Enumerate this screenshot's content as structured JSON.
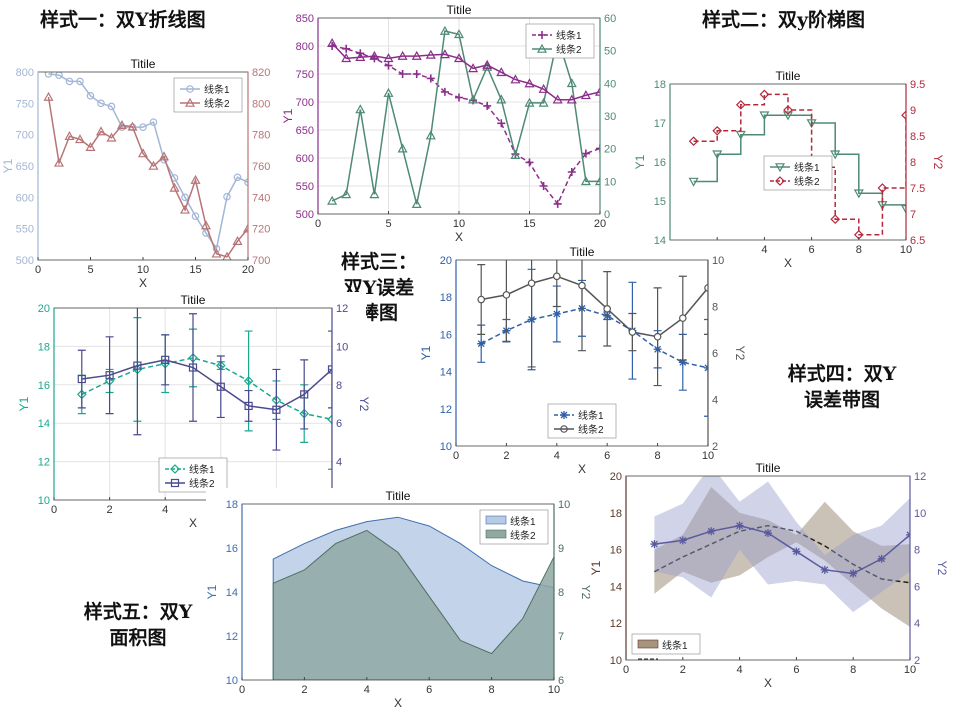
{
  "labels": {
    "style1": "样式一：双Y折线图",
    "style2": "样式二：双y阶梯图",
    "style3_line1": "样式三：",
    "style3_line2": "双Y误差",
    "style3_line3": "棒图",
    "style4_line1": "样式四：双Y",
    "style4_line2": "误差带图",
    "style5_line1": "样式五：双Y",
    "style5_line2": "面积图"
  },
  "chart_data": [
    {
      "id": "c1",
      "type": "line",
      "title": "Titile",
      "xlabel": "X",
      "ylabel": "Y1",
      "ylabel_right": "",
      "xlim": [
        0,
        20
      ],
      "ylim": [
        500,
        800
      ],
      "ylim_right": [
        700,
        820
      ],
      "xticks": [
        0,
        5,
        10,
        15,
        20
      ],
      "yticks": [
        500,
        550,
        600,
        650,
        700,
        750,
        800
      ],
      "yticks_right": [
        700,
        720,
        740,
        760,
        780,
        800,
        820
      ],
      "grid": false,
      "legend": "top-right",
      "colors": {
        "left": "#a2b6d6",
        "right": "#b87477"
      },
      "series": [
        {
          "name": "线条1",
          "axis": "left",
          "marker": "circle",
          "x": [
            1,
            2,
            3,
            4,
            5,
            6,
            7,
            8,
            9,
            10,
            11,
            12,
            13,
            14,
            15,
            16,
            17,
            18,
            19,
            20
          ],
          "y": [
            797,
            795,
            785,
            785,
            762,
            750,
            745,
            712,
            712,
            712,
            720,
            660,
            631,
            600,
            570,
            543,
            518,
            601,
            632,
            624
          ]
        },
        {
          "name": "线条2",
          "axis": "right",
          "marker": "triangle",
          "x": [
            1,
            2,
            3,
            4,
            5,
            6,
            7,
            8,
            9,
            10,
            11,
            12,
            13,
            14,
            15,
            16,
            17,
            18,
            19,
            20
          ],
          "y": [
            804,
            762,
            779,
            777,
            772,
            782,
            778,
            786,
            785,
            768,
            760,
            766,
            746,
            732,
            751,
            722,
            704,
            702,
            712,
            720
          ]
        }
      ]
    },
    {
      "id": "c2",
      "type": "line",
      "title": "Titile",
      "xlabel": "X",
      "ylabel": "Y1",
      "ylabel_right": "",
      "xlim": [
        0,
        20
      ],
      "ylim": [
        500,
        850
      ],
      "ylim_right": [
        0,
        60
      ],
      "xticks": [
        0,
        5,
        10,
        15,
        20
      ],
      "yticks": [
        500,
        550,
        600,
        650,
        700,
        750,
        800,
        850
      ],
      "yticks_right": [
        0,
        10,
        20,
        30,
        40,
        50,
        60
      ],
      "grid": true,
      "legend": "top-right",
      "colors": {
        "left": "#8b2e8b",
        "right": "#4e8a74"
      },
      "series": [
        {
          "name": "线条1",
          "axis": "left",
          "marker": "plus",
          "dash": true,
          "x": [
            1,
            2,
            3,
            4,
            5,
            6,
            7,
            8,
            9,
            10,
            11,
            12,
            13,
            14,
            15,
            16,
            17,
            18,
            19,
            20
          ],
          "y": [
            800,
            795,
            787,
            778,
            765,
            750,
            750,
            742,
            718,
            708,
            703,
            693,
            662,
            607,
            592,
            550,
            518,
            575,
            608,
            617
          ]
        },
        {
          "name": "线条2",
          "axis": "right",
          "marker": "triangle",
          "x": [
            1,
            2,
            3,
            4,
            5,
            6,
            7,
            8,
            9,
            10,
            11,
            12,
            13,
            14,
            15,
            16,
            17,
            18,
            19,
            20
          ],
          "y": [
            4,
            6,
            32,
            6,
            37,
            20,
            3,
            24,
            56,
            55,
            35,
            45,
            35,
            18,
            34,
            34,
            54,
            40,
            10,
            10
          ]
        },
        {
          "name": "",
          "axis": "left",
          "marker": "triangle-up",
          "x": [
            1,
            2,
            3,
            4,
            5,
            6,
            7,
            8,
            9,
            10,
            11,
            12,
            13,
            14,
            15,
            16,
            17,
            18,
            19,
            20
          ],
          "y": [
            805,
            778,
            780,
            782,
            778,
            782,
            782,
            784,
            785,
            778,
            760,
            766,
            753,
            740,
            733,
            723,
            704,
            704,
            712,
            718
          ]
        }
      ]
    },
    {
      "id": "c3",
      "type": "line",
      "title": "Titile",
      "xlabel": "X",
      "ylabel": "Y1",
      "ylabel_right": "Y2",
      "xlim": [
        0,
        10
      ],
      "ylim": [
        14,
        18
      ],
      "ylim_right": [
        6.5,
        9.5
      ],
      "xticks": [
        2,
        4,
        6,
        8,
        10
      ],
      "yticks": [
        14,
        15,
        16,
        17,
        18
      ],
      "yticks_right": [
        6.5,
        7,
        7.5,
        8,
        8.5,
        9,
        9.5
      ],
      "grid": false,
      "legend": "center",
      "colors": {
        "left": "#4e8a74",
        "right": "#b5283c"
      },
      "series": [
        {
          "name": "线条1",
          "axis": "left",
          "step": true,
          "marker": "triangle-down",
          "x": [
            1,
            2,
            3,
            4,
            5,
            6,
            7,
            8,
            9,
            10
          ],
          "y": [
            15.5,
            16.2,
            16.7,
            17.2,
            17.2,
            17.0,
            16.2,
            15.2,
            14.9,
            14.8
          ]
        },
        {
          "name": "线条2",
          "axis": "right",
          "step": true,
          "dash": true,
          "marker": "diamond",
          "x": [
            1,
            2,
            3,
            4,
            5,
            6,
            7,
            8,
            9,
            10
          ],
          "y": [
            8.4,
            8.6,
            9.1,
            9.3,
            9.0,
            7.9,
            6.9,
            6.6,
            7.5,
            8.9
          ]
        }
      ]
    },
    {
      "id": "c4",
      "type": "line",
      "title": "Titile",
      "xlabel": "X",
      "ylabel": "Y1",
      "ylabel_right": "Y2",
      "xlim": [
        0,
        10
      ],
      "ylim": [
        10,
        20
      ],
      "ylim_right": [
        2,
        12
      ],
      "xticks": [
        0,
        2,
        4,
        6,
        8,
        10
      ],
      "yticks": [
        10,
        12,
        14,
        16,
        18,
        20
      ],
      "yticks_right": [
        4,
        6,
        8,
        10,
        12
      ],
      "grid": true,
      "legend": "bottom-center",
      "colors": {
        "left": "#1aa88f",
        "right": "#4a4a8e"
      },
      "series": [
        {
          "name": "线条1",
          "axis": "left",
          "dash": true,
          "marker": "diamond",
          "x": [
            1,
            2,
            3,
            4,
            5,
            6,
            7,
            8,
            9,
            10
          ],
          "y": [
            15.5,
            16.2,
            16.8,
            17.1,
            17.4,
            17.0,
            16.2,
            15.2,
            14.5,
            14.2
          ],
          "err": [
            1.0,
            0.6,
            2.7,
            1.5,
            1.5,
            0.2,
            2.6,
            1.0,
            1.5,
            2.6
          ]
        },
        {
          "name": "线条2",
          "axis": "right",
          "marker": "square",
          "x": [
            1,
            2,
            3,
            4,
            5,
            6,
            7,
            8,
            9,
            10
          ],
          "y": [
            8.3,
            8.5,
            9.0,
            9.3,
            8.9,
            7.9,
            6.9,
            6.7,
            7.5,
            8.8
          ],
          "err": [
            1.5,
            2.0,
            3.6,
            1.3,
            2.8,
            1.6,
            0.8,
            2.1,
            1.8,
            2.0
          ]
        }
      ]
    },
    {
      "id": "c5",
      "type": "line",
      "title": "Titile",
      "xlabel": "X",
      "ylabel": "Y1",
      "ylabel_right": "Y2",
      "xlim": [
        0,
        10
      ],
      "ylim": [
        10,
        20
      ],
      "ylim_right": [
        2,
        10
      ],
      "xticks": [
        0,
        2,
        4,
        6,
        8,
        10
      ],
      "yticks": [
        10,
        12,
        14,
        16,
        18,
        20
      ],
      "yticks_right": [
        2,
        4,
        6,
        8,
        10
      ],
      "grid": false,
      "legend": "bottom-center",
      "colors": {
        "left": "#2f60a8",
        "right": "#555555"
      },
      "series": [
        {
          "name": "线条1",
          "axis": "left",
          "dash": true,
          "marker": "star",
          "x": [
            1,
            2,
            3,
            4,
            5,
            6,
            7,
            8,
            9,
            10
          ],
          "y": [
            15.5,
            16.2,
            16.8,
            17.1,
            17.4,
            17.0,
            16.2,
            15.2,
            14.5,
            14.2
          ],
          "err": [
            1.0,
            0.6,
            2.7,
            1.5,
            1.5,
            0.2,
            2.6,
            1.0,
            1.5,
            2.6
          ]
        },
        {
          "name": "线条2",
          "axis": "right",
          "marker": "circle",
          "x": [
            1,
            2,
            3,
            4,
            5,
            6,
            7,
            8,
            9,
            10
          ],
          "y": [
            8.3,
            8.5,
            9.0,
            9.3,
            8.9,
            7.9,
            6.9,
            6.7,
            7.5,
            8.8
          ],
          "err": [
            1.5,
            2.0,
            3.6,
            1.3,
            2.8,
            1.6,
            0.8,
            2.1,
            1.8,
            2.0
          ]
        }
      ]
    },
    {
      "id": "c6",
      "type": "area",
      "title": "Titile",
      "xlabel": "X",
      "ylabel": "Y1",
      "ylabel_right": "Y2",
      "xlim": [
        0,
        10
      ],
      "ylim": [
        10,
        18
      ],
      "ylim_right": [
        6,
        10
      ],
      "xticks": [
        0,
        2,
        4,
        6,
        8,
        10
      ],
      "yticks": [
        10,
        12,
        14,
        16,
        18
      ],
      "yticks_right": [
        6,
        7,
        8,
        9,
        10
      ],
      "grid": false,
      "legend": "top-right",
      "colors": {
        "left": "#3f6fad",
        "right": "#4e7060"
      },
      "series": [
        {
          "name": "线条1",
          "axis": "left",
          "fill": "#b8cbe6",
          "x": [
            1,
            2,
            3,
            4,
            5,
            6,
            7,
            8,
            9,
            10
          ],
          "y": [
            15.5,
            16.2,
            16.8,
            17.2,
            17.4,
            17.0,
            16.2,
            15.2,
            14.5,
            14.2
          ]
        },
        {
          "name": "线条2",
          "axis": "right",
          "fill": "#8fa8a4",
          "x": [
            1,
            2,
            3,
            4,
            5,
            6,
            7,
            8,
            9,
            10
          ],
          "y": [
            8.2,
            8.5,
            9.1,
            9.4,
            8.9,
            7.9,
            6.9,
            6.6,
            7.4,
            8.8
          ]
        }
      ]
    },
    {
      "id": "c7",
      "type": "area",
      "title": "Titile",
      "xlabel": "X",
      "ylabel": "Y1",
      "ylabel_right": "Y2",
      "xlim": [
        0,
        10
      ],
      "ylim": [
        10,
        20
      ],
      "ylim_right": [
        2,
        12
      ],
      "xticks": [
        0,
        2,
        4,
        6,
        8,
        10
      ],
      "yticks": [
        10,
        12,
        14,
        16,
        18,
        20
      ],
      "yticks_right": [
        2,
        4,
        6,
        8,
        10,
        12
      ],
      "grid": false,
      "legend": "bottom-left",
      "colors": {
        "left": "#5b3a2a",
        "right": "#5a5a9e"
      },
      "series": [
        {
          "name": "线条1",
          "axis": "left",
          "band": true,
          "dash": true,
          "x": [
            1,
            2,
            3,
            4,
            5,
            6,
            7,
            8,
            9,
            10
          ],
          "y": [
            14.8,
            15.6,
            16.3,
            17.0,
            17.3,
            17.0,
            16.2,
            15.2,
            14.4,
            14.2
          ],
          "upper": [
            16.0,
            16.8,
            19.4,
            18.0,
            17.6,
            16.8,
            18.6,
            17.0,
            16.2,
            16.3
          ],
          "lower": [
            13.6,
            14.8,
            14.2,
            14.6,
            15.6,
            16.4,
            15.4,
            14.1,
            12.8,
            11.8
          ]
        },
        {
          "name": "",
          "axis": "right",
          "band": true,
          "marker": "star",
          "x": [
            1,
            2,
            3,
            4,
            5,
            6,
            7,
            8,
            9,
            10
          ],
          "y": [
            8.3,
            8.5,
            9.0,
            9.3,
            8.9,
            7.9,
            6.9,
            6.7,
            7.5,
            8.8
          ],
          "upper": [
            9.8,
            10.5,
            12.6,
            10.6,
            11.7,
            9.5,
            7.7,
            8.8,
            9.3,
            10.8
          ],
          "lower": [
            6.8,
            6.5,
            5.4,
            8.0,
            6.1,
            6.3,
            6.1,
            4.6,
            5.7,
            6.8
          ]
        }
      ]
    }
  ]
}
